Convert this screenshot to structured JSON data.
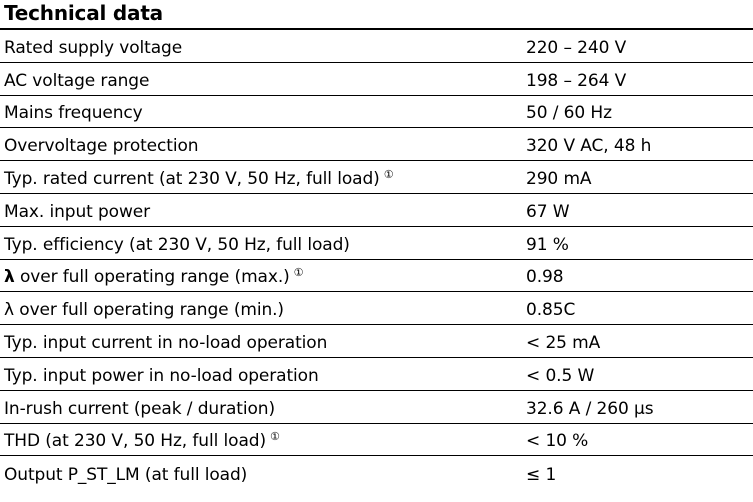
{
  "title": "Technical data",
  "footnote_mark": "①",
  "rows": [
    {
      "label": "Rated supply voltage",
      "value": "220 – 240 V",
      "note": false
    },
    {
      "label": "AC voltage range",
      "value": "198 – 264 V",
      "note": false
    },
    {
      "label": "Mains frequency",
      "value": "50 / 60 Hz",
      "note": false
    },
    {
      "label": "Overvoltage protection",
      "value": "320 V AC, 48 h",
      "note": false
    },
    {
      "label": "Typ. rated current (at 230 V, 50 Hz, full load)",
      "value": "290 mA",
      "note": true
    },
    {
      "label": "Max. input power",
      "value": "67 W",
      "note": false
    },
    {
      "label": "Typ. efficiency (at 230 V, 50 Hz, full load)",
      "value": "91 %",
      "note": false
    },
    {
      "label": "λ over full operating range (max.)",
      "value": "0.98",
      "note": true,
      "bold_lambda": true
    },
    {
      "label": "λ over full operating range (min.)",
      "value": "0.85C",
      "note": false
    },
    {
      "label": "Typ. input current in no-load operation",
      "value": "< 25 mA",
      "note": false
    },
    {
      "label": "Typ. input power in no-load operation",
      "value": "< 0.5 W",
      "note": false
    },
    {
      "label": "In-rush current (peak / duration)",
      "value": "32.6 A / 260 µs",
      "note": false
    },
    {
      "label": "THD (at 230 V, 50 Hz, full load)",
      "value": "< 10 %",
      "note": true
    },
    {
      "label": "Output P_ST_LM (at full load)",
      "value": "≤ 1",
      "note": false
    }
  ]
}
